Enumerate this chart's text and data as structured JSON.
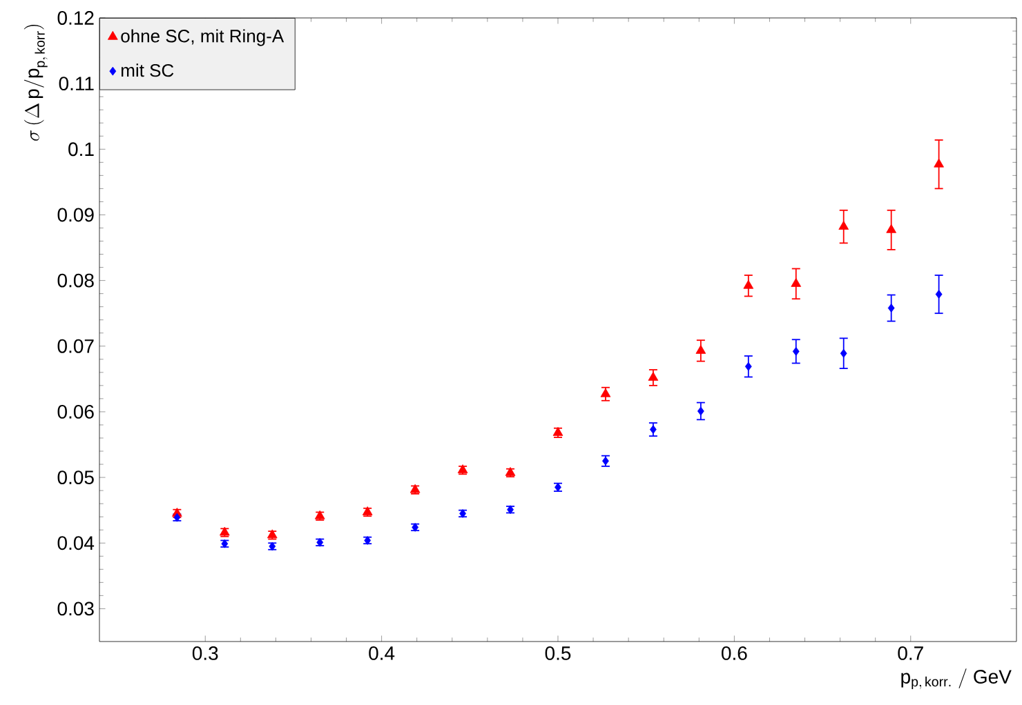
{
  "chart_data": {
    "type": "scatter",
    "xlabel": "\\mathrm{p}_{\\mathrm{p,\\,korr.}}\\ \\mathrm{/\\ GeV}",
    "ylabel": "\\sigma\\,(\\Delta\\, \\mathrm{p/p}_{\\mathrm{p,\\,korr}})",
    "x": [
      0.284,
      0.311,
      0.338,
      0.365,
      0.392,
      0.419,
      0.446,
      0.473,
      0.5,
      0.527,
      0.554,
      0.581,
      0.608,
      0.635,
      0.662,
      0.689,
      0.716
    ],
    "series": [
      {
        "name": "ohne SC, mit Ring-A",
        "color": "#ff0000",
        "marker": "triangle",
        "values": [
          0.0445,
          0.0416,
          0.0412,
          0.0441,
          0.0447,
          0.0481,
          0.0511,
          0.0507,
          0.0568,
          0.0627,
          0.0652,
          0.0693,
          0.0792,
          0.0795,
          0.0882,
          0.0877,
          0.0977
        ],
        "errors": [
          0.0006,
          0.0006,
          0.0006,
          0.0006,
          0.0006,
          0.0006,
          0.0006,
          0.0006,
          0.0007,
          0.001,
          0.0012,
          0.0016,
          0.0016,
          0.0023,
          0.0025,
          0.003,
          0.0037
        ]
      },
      {
        "name": "mit SC",
        "color": "#0000ff",
        "marker": "diamond",
        "values": [
          0.0439,
          0.0399,
          0.0395,
          0.0401,
          0.0404,
          0.0424,
          0.0445,
          0.0451,
          0.0485,
          0.0525,
          0.0573,
          0.0601,
          0.0669,
          0.0692,
          0.0689,
          0.0758,
          0.0779
        ],
        "errors": [
          0.0005,
          0.0005,
          0.0005,
          0.0005,
          0.0005,
          0.0005,
          0.0005,
          0.0005,
          0.0006,
          0.0008,
          0.001,
          0.0013,
          0.0016,
          0.0018,
          0.0023,
          0.002,
          0.0029
        ]
      }
    ],
    "xlim": [
      0.24,
      0.76
    ],
    "ylim": [
      0.025,
      0.12
    ],
    "xticks": [
      0.3,
      0.4,
      0.5,
      0.6,
      0.7
    ],
    "yticks": [
      0.03,
      0.04,
      0.05,
      0.06,
      0.07,
      0.08,
      0.09,
      0.1,
      0.11,
      0.12
    ],
    "grid": false,
    "legend": "top left"
  }
}
